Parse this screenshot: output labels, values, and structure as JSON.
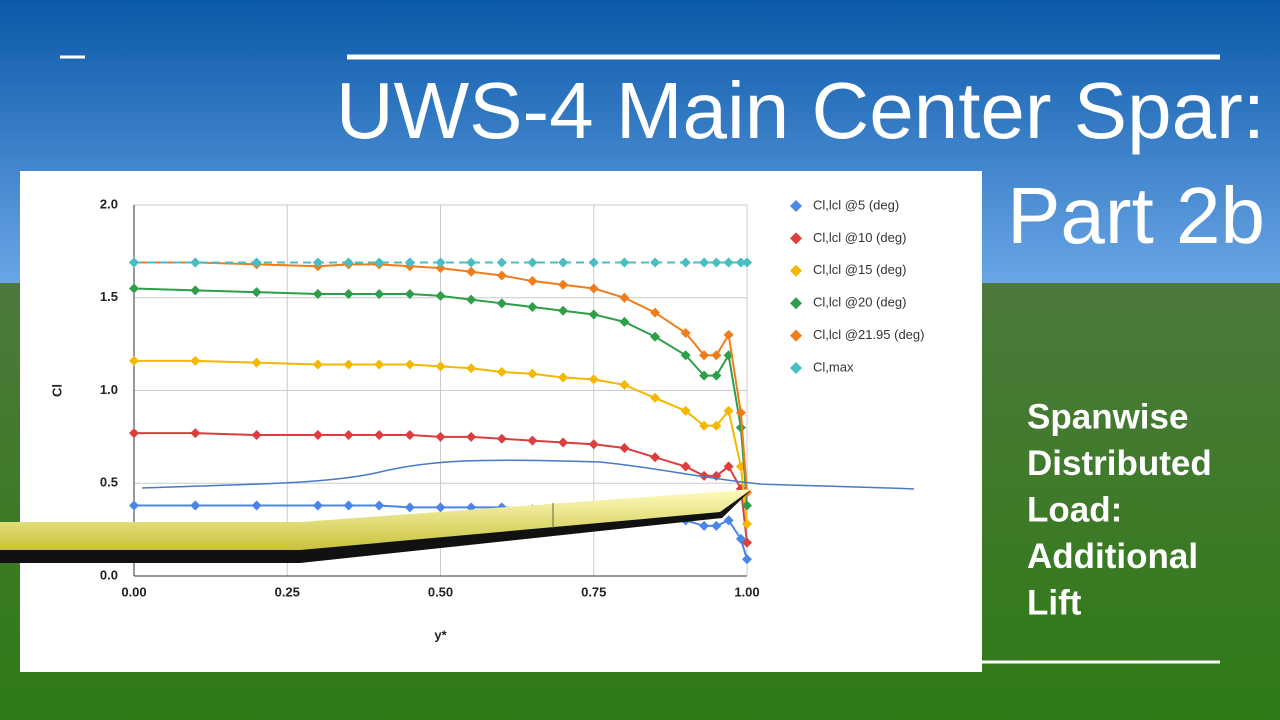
{
  "slide": {
    "title": "UWS-4 Main Center Spar:",
    "subtitle": "Part 2b",
    "side_text": [
      "Spanwise",
      "Distributed",
      "Load:",
      "Additional",
      "Lift"
    ]
  },
  "chart_data": {
    "type": "line",
    "x_label": "y*",
    "y_label": "Cl",
    "x": [
      0,
      0.1,
      0.2,
      0.3,
      0.35,
      0.4,
      0.45,
      0.5,
      0.55,
      0.6,
      0.65,
      0.7,
      0.75,
      0.8,
      0.85,
      0.9,
      0.93,
      0.95,
      0.97,
      0.99,
      1.0
    ],
    "series": [
      {
        "name": "Cl,lcl @5 (deg)",
        "color": "#4a86e8",
        "values": [
          0.38,
          0.38,
          0.38,
          0.38,
          0.38,
          0.38,
          0.37,
          0.37,
          0.37,
          0.37,
          0.36,
          0.36,
          0.35,
          0.34,
          0.32,
          0.3,
          0.27,
          0.27,
          0.3,
          0.2,
          0.09
        ]
      },
      {
        "name": "Cl,lcl @10 (deg)",
        "color": "#dc3e3e",
        "values": [
          0.77,
          0.77,
          0.76,
          0.76,
          0.76,
          0.76,
          0.76,
          0.75,
          0.75,
          0.74,
          0.73,
          0.72,
          0.71,
          0.69,
          0.64,
          0.59,
          0.54,
          0.54,
          0.59,
          0.47,
          0.18
        ]
      },
      {
        "name": "Cl,lcl @15 (deg)",
        "color": "#f4b800",
        "values": [
          1.16,
          1.16,
          1.15,
          1.14,
          1.14,
          1.14,
          1.14,
          1.13,
          1.12,
          1.1,
          1.09,
          1.07,
          1.06,
          1.03,
          0.96,
          0.89,
          0.81,
          0.81,
          0.89,
          0.59,
          0.28
        ]
      },
      {
        "name": "Cl,lcl @20 (deg)",
        "color": "#2e9e4a",
        "values": [
          1.55,
          1.54,
          1.53,
          1.52,
          1.52,
          1.52,
          1.52,
          1.51,
          1.49,
          1.47,
          1.45,
          1.43,
          1.41,
          1.37,
          1.29,
          1.19,
          1.08,
          1.08,
          1.19,
          0.8,
          0.38
        ]
      },
      {
        "name": "Cl,lcl @21.95 (deg)",
        "color": "#f07c1a",
        "values": [
          1.69,
          1.69,
          1.68,
          1.67,
          1.68,
          1.68,
          1.67,
          1.66,
          1.64,
          1.62,
          1.59,
          1.57,
          1.55,
          1.5,
          1.42,
          1.31,
          1.19,
          1.19,
          1.3,
          0.88,
          0.45
        ]
      },
      {
        "name": "Cl,max",
        "color": "#45bfc4",
        "dashed": true,
        "values": [
          1.69,
          1.69,
          1.69,
          1.69,
          1.69,
          1.69,
          1.69,
          1.69,
          1.69,
          1.69,
          1.69,
          1.69,
          1.69,
          1.69,
          1.69,
          1.69,
          1.69,
          1.69,
          1.69,
          1.69,
          1.69
        ]
      }
    ],
    "xlim": [
      0,
      1.0
    ],
    "ylim": [
      0,
      2.0
    ],
    "xticks": [
      {
        "value": 0,
        "label": "0.00"
      },
      {
        "value": 0.25,
        "label": "0.25"
      },
      {
        "value": 0.5,
        "label": "0.50"
      },
      {
        "value": 0.75,
        "label": "0.75"
      },
      {
        "value": 1.0,
        "label": "1.00"
      }
    ],
    "yticks": [
      {
        "value": 0,
        "label": "0.0"
      },
      {
        "value": 0.5,
        "label": "0.5"
      },
      {
        "value": 1.0,
        "label": "1.0"
      },
      {
        "value": 1.5,
        "label": "1.5"
      },
      {
        "value": 2.0,
        "label": "2.0"
      }
    ],
    "grid": true,
    "legend": "right"
  }
}
